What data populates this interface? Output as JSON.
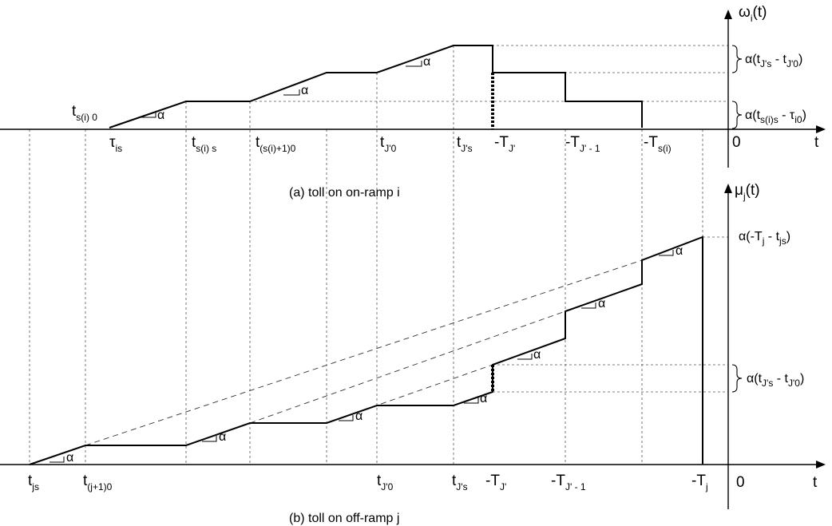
{
  "panel_a": {
    "caption": "(a) toll on on-ramp i",
    "y_axis": {
      "main": "ω",
      "sub": "i",
      "tail": "(t)"
    },
    "x_axis": "t",
    "origin": "0",
    "alpha": "α",
    "labels": {
      "ts0": {
        "main": "t",
        "sub": "s(i) 0"
      },
      "tau": {
        "main": "τ",
        "sub": "is"
      },
      "tss": {
        "main": "t",
        "sub": "s(i) s"
      },
      "ts10": {
        "main": "t",
        "sub": "(s(i)+1)0"
      },
      "tj0": {
        "main": "t",
        "sub": "J'0"
      },
      "tjs": {
        "main": "t",
        "sub": "J's"
      },
      "Tj": {
        "main": "-T",
        "sub": "J'"
      },
      "Tj1": {
        "main": "-T",
        "sub": "J' - 1"
      },
      "Ts": {
        "main": "-T",
        "sub": "s(i)"
      }
    },
    "brace_top": {
      "a": "α(t",
      "s1": "J's",
      "b": " - t",
      "s2": "J'0",
      "c": ")"
    },
    "brace_bottom": {
      "a": "α(t",
      "s1": "s(i)s",
      "b": " - τ",
      "s2": "i0",
      "c": ")"
    }
  },
  "panel_b": {
    "caption": "(b) toll on off-ramp j",
    "y_axis": {
      "main": "μ",
      "sub": "j",
      "tail": "(t)"
    },
    "x_axis": "t",
    "origin": "0",
    "alpha": "α",
    "labels": {
      "tjs": {
        "main": "t",
        "sub": "js"
      },
      "tj10": {
        "main": "t",
        "sub": "(j+1)0"
      },
      "tJ0": {
        "main": "t",
        "sub": "J'0"
      },
      "tJs": {
        "main": "t",
        "sub": "J's"
      },
      "TJ": {
        "main": "-T",
        "sub": "J'"
      },
      "TJ1": {
        "main": "-T",
        "sub": "J' - 1"
      },
      "Tj": {
        "main": "-T",
        "sub": "j"
      }
    },
    "brace_top": {
      "a": "α(-T",
      "s1": "j",
      "b": " - t",
      "s2": "js",
      "c": ")"
    },
    "brace_mid": {
      "a": "α(t",
      "s1": "J's",
      "b": " - t",
      "s2": "J'0",
      "c": ")"
    }
  }
}
